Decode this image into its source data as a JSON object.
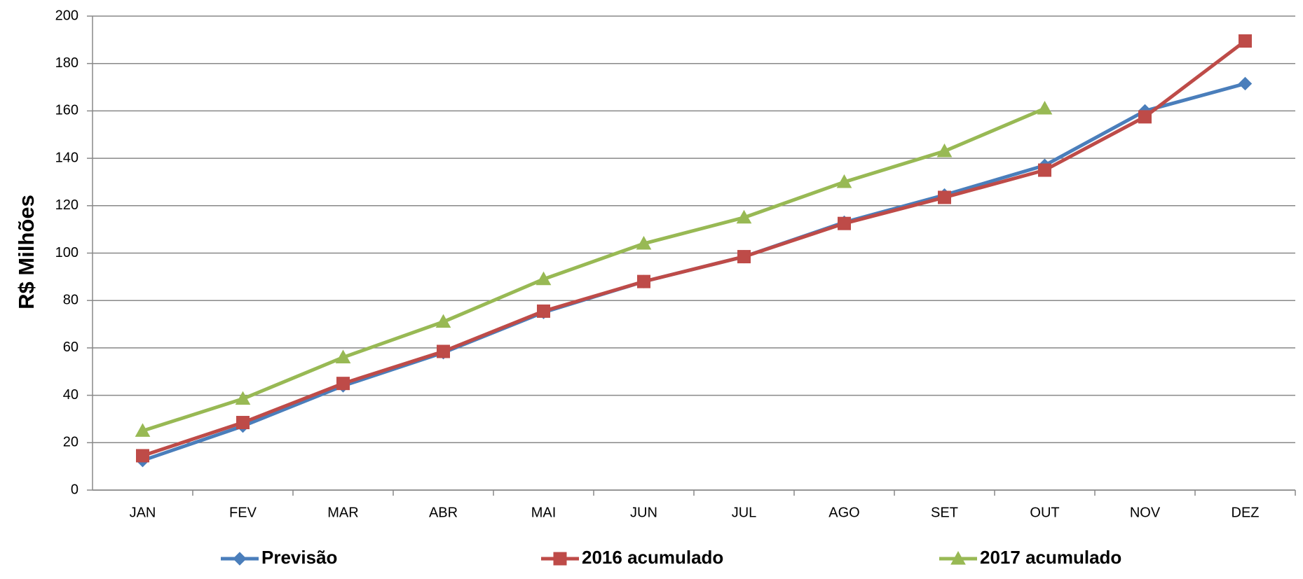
{
  "chart_data": {
    "type": "line",
    "y_label": "R$ Milhões",
    "categories": [
      "JAN",
      "FEV",
      "MAR",
      "ABR",
      "MAI",
      "JUN",
      "JUL",
      "AGO",
      "SET",
      "OUT",
      "NOV",
      "DEZ"
    ],
    "series": [
      {
        "name": "Previsão",
        "color": "#4a7ebb",
        "marker": "diamond",
        "values": [
          12.5,
          27,
          44,
          58,
          75,
          88,
          98.5,
          113,
          124.5,
          137,
          160,
          171.5
        ]
      },
      {
        "name": "2016 acumulado",
        "color": "#be4b48",
        "marker": "square",
        "values": [
          14.5,
          28.5,
          45,
          58.5,
          75.5,
          88,
          98.5,
          112.5,
          123.5,
          135,
          157.5,
          189.5
        ]
      },
      {
        "name": "2017 acumulado",
        "color": "#98b954",
        "marker": "triangle",
        "values": [
          25,
          38.5,
          56,
          71,
          89,
          104,
          115,
          130,
          143,
          161,
          null,
          null
        ]
      }
    ],
    "ylim": [
      0,
      200
    ],
    "yticks": [
      0,
      20,
      40,
      60,
      80,
      100,
      120,
      140,
      160,
      180,
      200
    ],
    "grid": true,
    "legend": "bottom"
  }
}
